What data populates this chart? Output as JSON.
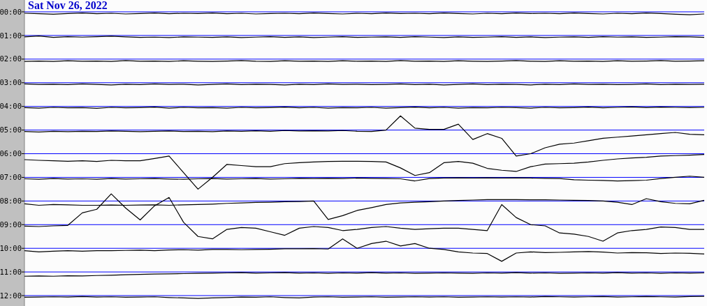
{
  "chart_data": {
    "type": "line",
    "title": "Sat Nov 26, 2022",
    "categories": [
      null,
      null,
      null,
      null,
      null,
      null,
      null,
      null,
      null,
      null,
      null,
      null,
      null,
      null,
      null,
      null,
      null,
      null,
      null,
      null,
      null,
      null,
      null,
      null,
      null,
      null,
      null,
      null,
      null,
      null,
      null,
      null,
      null,
      null,
      null,
      null,
      null,
      null,
      null,
      null,
      null,
      null,
      null,
      null,
      null,
      null,
      null,
      null
    ],
    "series": [
      {
        "color": "#000000",
        "values": [
          0.06,
          0.08,
          0.1,
          0.07,
          0.05,
          0.08,
          0.06,
          0.09,
          0.07,
          0.05,
          0.08,
          0.06,
          0.07,
          0.05,
          0.08,
          0.06,
          0.09,
          0.07,
          0.06,
          0.08,
          0.05,
          0.07,
          0.09,
          0.06,
          0.08,
          0.05,
          0.07,
          0.06,
          0.08,
          0.05,
          0.07,
          0.09,
          0.06,
          0.08,
          0.05,
          0.07,
          0.06,
          0.08,
          0.05,
          0.07,
          0.09,
          0.06,
          0.08,
          0.05,
          0.07,
          0.1,
          0.12,
          0.09
        ]
      },
      {
        "color": "#000000",
        "values": [
          1.06,
          1.02,
          1.08,
          1.05,
          1.07,
          1.05,
          1.03,
          1.06,
          1.08,
          1.07,
          1.09,
          1.06,
          1.07,
          1.08,
          1.06,
          1.09,
          1.07,
          1.05,
          1.08,
          1.06,
          1.09,
          1.07,
          1.05,
          1.08,
          1.07,
          1.06,
          1.08,
          1.05,
          1.07,
          1.09,
          1.06,
          1.08,
          1.07,
          1.05,
          1.08,
          1.06,
          1.09,
          1.07,
          1.06,
          1.08,
          1.05,
          1.07,
          1.06,
          1.08,
          1.07,
          1.05,
          1.06,
          1.08
        ]
      },
      {
        "color": "#000000",
        "values": [
          2.1,
          2.08,
          2.1,
          2.07,
          2.09,
          2.08,
          2.1,
          2.06,
          2.09,
          2.08,
          2.1,
          2.07,
          2.09,
          2.1,
          2.08,
          2.06,
          2.09,
          2.1,
          2.07,
          2.09,
          2.08,
          2.1,
          2.07,
          2.09,
          2.08,
          2.1,
          2.06,
          2.09,
          2.08,
          2.1,
          2.07,
          2.09,
          2.1,
          2.08,
          2.06,
          2.09,
          2.1,
          2.07,
          2.09,
          2.08,
          2.1,
          2.07,
          2.09,
          2.08,
          2.06,
          2.09,
          2.08,
          2.07
        ]
      },
      {
        "color": "#000000",
        "values": [
          3.05,
          3.07,
          3.06,
          3.08,
          3.05,
          3.07,
          3.09,
          3.06,
          3.08,
          3.05,
          3.07,
          3.06,
          3.09,
          3.07,
          3.05,
          3.08,
          3.06,
          3.07,
          3.09,
          3.06,
          3.08,
          3.05,
          3.07,
          3.06,
          3.08,
          3.07,
          3.05,
          3.08,
          3.06,
          3.09,
          3.07,
          3.05,
          3.08,
          3.06,
          3.07,
          3.09,
          3.06,
          3.08,
          3.05,
          3.07,
          3.06,
          3.08,
          3.07,
          3.05,
          3.08,
          3.06,
          3.07,
          3.06
        ]
      },
      {
        "color": "#000000",
        "values": [
          4.05,
          4.07,
          4.04,
          4.06,
          4.05,
          4.08,
          4.04,
          4.06,
          4.05,
          4.03,
          4.07,
          4.04,
          4.06,
          4.05,
          4.07,
          4.04,
          4.06,
          4.05,
          4.03,
          4.06,
          4.04,
          4.07,
          4.05,
          4.06,
          4.04,
          4.07,
          4.05,
          4.03,
          4.06,
          4.04,
          4.07,
          4.05,
          4.06,
          4.04,
          4.05,
          4.07,
          4.04,
          4.06,
          4.05,
          4.03,
          4.06,
          4.04,
          4.02,
          4.05,
          4.03,
          4.04,
          4.05,
          4.04
        ]
      },
      {
        "color": "#000000",
        "values": [
          5.06,
          5.08,
          5.05,
          5.07,
          5.05,
          5.06,
          5.04,
          5.05,
          5.07,
          5.05,
          5.04,
          5.06,
          5.05,
          5.07,
          5.04,
          5.05,
          5.03,
          5.05,
          5.02,
          5.04,
          5.03,
          5.04,
          5.02,
          5.05,
          5.06,
          5.0,
          4.4,
          4.92,
          4.97,
          4.97,
          4.75,
          5.4,
          5.15,
          5.35,
          6.1,
          6.0,
          5.75,
          5.6,
          5.55,
          5.45,
          5.35,
          5.3,
          5.25,
          5.2,
          5.15,
          5.1,
          5.18,
          5.2
        ]
      },
      {
        "color": "#000000",
        "values": [
          6.25,
          6.28,
          6.3,
          6.32,
          6.3,
          6.33,
          6.28,
          6.3,
          6.3,
          6.2,
          6.1,
          6.8,
          7.5,
          7.0,
          6.45,
          6.5,
          6.55,
          6.55,
          6.42,
          6.38,
          6.35,
          6.33,
          6.32,
          6.32,
          6.33,
          6.35,
          6.6,
          6.92,
          6.8,
          6.38,
          6.33,
          6.4,
          6.62,
          6.7,
          6.75,
          6.55,
          6.44,
          6.42,
          6.4,
          6.35,
          6.28,
          6.22,
          6.18,
          6.15,
          6.1,
          6.08,
          6.06,
          6.03
        ]
      },
      {
        "color": "#000000",
        "values": [
          7.06,
          7.08,
          7.05,
          7.07,
          7.06,
          7.08,
          7.05,
          7.07,
          7.06,
          7.05,
          7.07,
          7.08,
          7.06,
          7.05,
          7.07,
          7.06,
          7.05,
          7.07,
          7.06,
          7.04,
          7.05,
          7.04,
          7.05,
          7.03,
          7.04,
          7.05,
          7.06,
          7.15,
          7.05,
          7.03,
          7.02,
          7.03,
          7.02,
          7.03,
          7.02,
          7.03,
          7.04,
          7.05,
          7.1,
          7.12,
          7.13,
          7.15,
          7.14,
          7.12,
          7.05,
          7.0,
          6.95,
          7.0
        ]
      },
      {
        "color": "#000000",
        "values": [
          8.12,
          8.18,
          8.15,
          8.16,
          8.18,
          8.18,
          8.17,
          8.18,
          8.17,
          8.16,
          8.18,
          8.16,
          8.15,
          8.13,
          8.1,
          8.08,
          8.06,
          8.05,
          8.03,
          8.02,
          8.0,
          8.78,
          8.62,
          8.4,
          8.28,
          8.15,
          8.08,
          8.05,
          8.03,
          8.0,
          7.98,
          7.96,
          7.94,
          7.94,
          7.94,
          7.95,
          7.95,
          7.96,
          7.97,
          7.98,
          8.0,
          8.05,
          8.15,
          7.9,
          8.03,
          8.1,
          8.12,
          7.97
        ]
      },
      {
        "color": "#000000",
        "values": [
          9.06,
          9.08,
          9.05,
          9.03,
          8.5,
          8.35,
          7.7,
          8.3,
          8.8,
          8.2,
          7.85,
          8.9,
          9.5,
          9.6,
          9.2,
          9.12,
          9.15,
          9.3,
          9.45,
          9.15,
          9.08,
          9.12,
          9.25,
          9.2,
          9.12,
          9.08,
          9.15,
          9.2,
          9.17,
          9.15,
          9.15,
          9.2,
          9.25,
          8.15,
          8.7,
          9.0,
          9.05,
          9.35,
          9.4,
          9.5,
          9.7,
          9.35,
          9.25,
          9.2,
          9.1,
          9.12,
          9.2,
          9.2
        ]
      },
      {
        "color": "#000000",
        "values": [
          10.1,
          10.15,
          10.12,
          10.1,
          10.12,
          10.1,
          10.1,
          10.09,
          10.08,
          10.1,
          10.07,
          10.06,
          10.08,
          10.05,
          10.05,
          10.06,
          10.05,
          10.04,
          10.02,
          10.02,
          10.01,
          10.03,
          9.6,
          10.0,
          9.8,
          9.7,
          9.9,
          9.8,
          10.0,
          10.05,
          10.15,
          10.2,
          10.22,
          10.55,
          10.2,
          10.15,
          10.18,
          10.17,
          10.15,
          10.14,
          10.16,
          10.2,
          10.18,
          10.19,
          10.22,
          10.2,
          10.21,
          10.24
        ]
      },
      {
        "color": "#000000",
        "values": [
          11.18,
          11.17,
          11.18,
          11.16,
          11.17,
          11.15,
          11.14,
          11.12,
          11.1,
          11.09,
          11.08,
          11.07,
          11.06,
          11.05,
          11.04,
          11.03,
          11.05,
          11.04,
          11.03,
          11.05,
          11.04,
          11.06,
          11.04,
          11.05,
          11.03,
          11.05,
          11.04,
          11.06,
          11.05,
          11.04,
          11.05,
          11.06,
          11.04,
          11.05,
          11.03,
          11.05,
          11.04,
          11.06,
          11.05,
          11.04,
          11.05,
          11.03,
          11.05,
          11.04,
          11.06,
          11.04,
          11.05,
          11.04
        ]
      },
      {
        "color": "#000000",
        "values": [
          12.07,
          12.06,
          12.05,
          12.06,
          12.04,
          12.06,
          12.05,
          12.07,
          12.06,
          12.05,
          12.08,
          12.1,
          12.12,
          12.1,
          12.08,
          12.06,
          12.07,
          12.05,
          12.08,
          12.1,
          12.06,
          12.05,
          12.07,
          12.06,
          12.05,
          12.07,
          12.06,
          12.05,
          12.06,
          12.05,
          12.07,
          12.06,
          12.05,
          12.06,
          12.05,
          12.06,
          12.04,
          12.05,
          12.06,
          12.05,
          12.04,
          12.06,
          12.05,
          12.04,
          12.05,
          12.06,
          12.04,
          12.03
        ]
      }
    ],
    "ylim": [
      12.44,
      -0.5
    ],
    "yticks": [
      {
        "value": 0,
        "label": "00:00"
      },
      {
        "value": 1,
        "label": "01:00"
      },
      {
        "value": 2,
        "label": "02:00"
      },
      {
        "value": 3,
        "label": "03:00"
      },
      {
        "value": 4,
        "label": "04:00"
      },
      {
        "value": 5,
        "label": "05:00"
      },
      {
        "value": 6,
        "label": "06:00"
      },
      {
        "value": 7,
        "label": "07:00"
      },
      {
        "value": 8,
        "label": "08:00"
      },
      {
        "value": 9,
        "label": "09:00"
      },
      {
        "value": 10,
        "label": "10:00"
      },
      {
        "value": 11,
        "label": "11:00"
      },
      {
        "value": 12,
        "label": "12:00"
      }
    ],
    "grid": "y"
  }
}
